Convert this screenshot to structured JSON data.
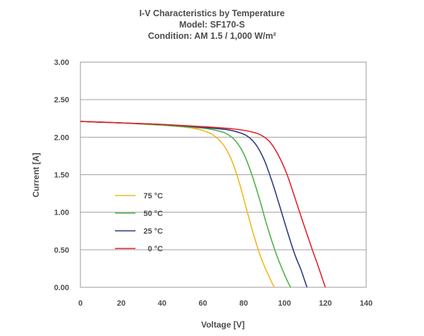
{
  "chart_data": {
    "type": "line",
    "title_lines": [
      "I-V Characteristics by Temperature",
      "Model:  SF170-S",
      "Condition:  AM 1.5 / 1,000 W/m²"
    ],
    "xlabel": "Voltage [V]",
    "ylabel": "Current [A]",
    "xlim": [
      0,
      140
    ],
    "ylim": [
      0,
      3.0
    ],
    "xticks": [
      0,
      20,
      40,
      60,
      80,
      100,
      120,
      140
    ],
    "yticks": [
      0,
      0.5,
      1.0,
      1.5,
      2.0,
      2.5,
      3.0
    ],
    "xtick_labels": [
      "0",
      "20",
      "40",
      "60",
      "80",
      "100",
      "120",
      "140"
    ],
    "ytick_labels": [
      "0.00",
      "0.50",
      "1.00",
      "1.50",
      "2.00",
      "2.50",
      "3.00"
    ],
    "grid": "horizontal",
    "legend_position": "lower-left",
    "series": [
      {
        "name": "75 °C",
        "color": "#f4b521",
        "x": [
          0,
          20,
          40,
          55,
          62,
          66,
          70,
          74,
          78,
          81,
          84,
          86,
          88,
          90,
          92,
          94,
          95
        ],
        "y": [
          2.21,
          2.19,
          2.16,
          2.12,
          2.07,
          2.01,
          1.9,
          1.7,
          1.38,
          1.08,
          0.78,
          0.6,
          0.43,
          0.29,
          0.17,
          0.05,
          0.0
        ]
      },
      {
        "name": "50 °C",
        "color": "#4bb34b",
        "x": [
          0,
          20,
          40,
          60,
          68,
          72,
          76,
          80,
          84,
          88,
          91,
          94,
          96,
          98,
          100,
          102,
          103
        ],
        "y": [
          2.21,
          2.19,
          2.16,
          2.12,
          2.08,
          2.04,
          1.95,
          1.78,
          1.5,
          1.15,
          0.86,
          0.6,
          0.44,
          0.3,
          0.17,
          0.05,
          0.0
        ]
      },
      {
        "name": "25 °C",
        "color": "#2c3a7e",
        "x": [
          0,
          20,
          40,
          60,
          72,
          78,
          82,
          86,
          90,
          94,
          98,
          101,
          104,
          106,
          108,
          110,
          111
        ],
        "y": [
          2.21,
          2.19,
          2.17,
          2.13,
          2.1,
          2.06,
          2.01,
          1.9,
          1.7,
          1.4,
          1.05,
          0.78,
          0.52,
          0.37,
          0.24,
          0.08,
          0.0
        ]
      },
      {
        "name": "0 °C",
        "color": "#e2232b",
        "x": [
          0,
          20,
          40,
          60,
          75,
          84,
          89,
          93,
          97,
          101,
          105,
          109,
          112,
          114,
          116,
          118,
          120
        ],
        "y": [
          2.21,
          2.19,
          2.17,
          2.14,
          2.11,
          2.07,
          2.02,
          1.93,
          1.76,
          1.52,
          1.2,
          0.87,
          0.63,
          0.47,
          0.32,
          0.16,
          0.0
        ]
      }
    ]
  }
}
